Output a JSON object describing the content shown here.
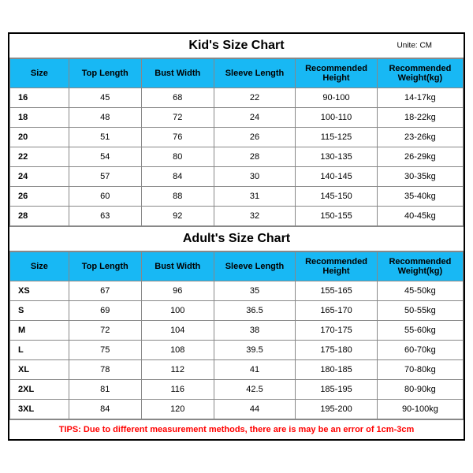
{
  "colors": {
    "header_bg": "#18b8f4",
    "tips_color": "#ff0000",
    "border": "#000000"
  },
  "kid": {
    "title": "Kid's Size Chart",
    "unit": "Unite: CM",
    "columns": [
      "Size",
      "Top Length",
      "Bust Width",
      "Sleeve Length",
      "Recommended Height",
      "Recommended Weight(kg)"
    ],
    "rows": [
      [
        "16",
        "45",
        "68",
        "22",
        "90-100",
        "14-17kg"
      ],
      [
        "18",
        "48",
        "72",
        "24",
        "100-110",
        "18-22kg"
      ],
      [
        "20",
        "51",
        "76",
        "26",
        "115-125",
        "23-26kg"
      ],
      [
        "22",
        "54",
        "80",
        "28",
        "130-135",
        "26-29kg"
      ],
      [
        "24",
        "57",
        "84",
        "30",
        "140-145",
        "30-35kg"
      ],
      [
        "26",
        "60",
        "88",
        "31",
        "145-150",
        "35-40kg"
      ],
      [
        "28",
        "63",
        "92",
        "32",
        "150-155",
        "40-45kg"
      ]
    ]
  },
  "adult": {
    "title": "Adult's Size Chart",
    "columns": [
      "Size",
      "Top Length",
      "Bust Width",
      "Sleeve Length",
      "Recommended Height",
      "Recommended Weight(kg)"
    ],
    "rows": [
      [
        "XS",
        "67",
        "96",
        "35",
        "155-165",
        "45-50kg"
      ],
      [
        "S",
        "69",
        "100",
        "36.5",
        "165-170",
        "50-55kg"
      ],
      [
        "M",
        "72",
        "104",
        "38",
        "170-175",
        "55-60kg"
      ],
      [
        "L",
        "75",
        "108",
        "39.5",
        "175-180",
        "60-70kg"
      ],
      [
        "XL",
        "78",
        "112",
        "41",
        "180-185",
        "70-80kg"
      ],
      [
        "2XL",
        "81",
        "116",
        "42.5",
        "185-195",
        "80-90kg"
      ],
      [
        "3XL",
        "84",
        "120",
        "44",
        "195-200",
        "90-100kg"
      ]
    ]
  },
  "tips": "TIPS: Due to different measurement methods, there are is may be an error of 1cm-3cm"
}
